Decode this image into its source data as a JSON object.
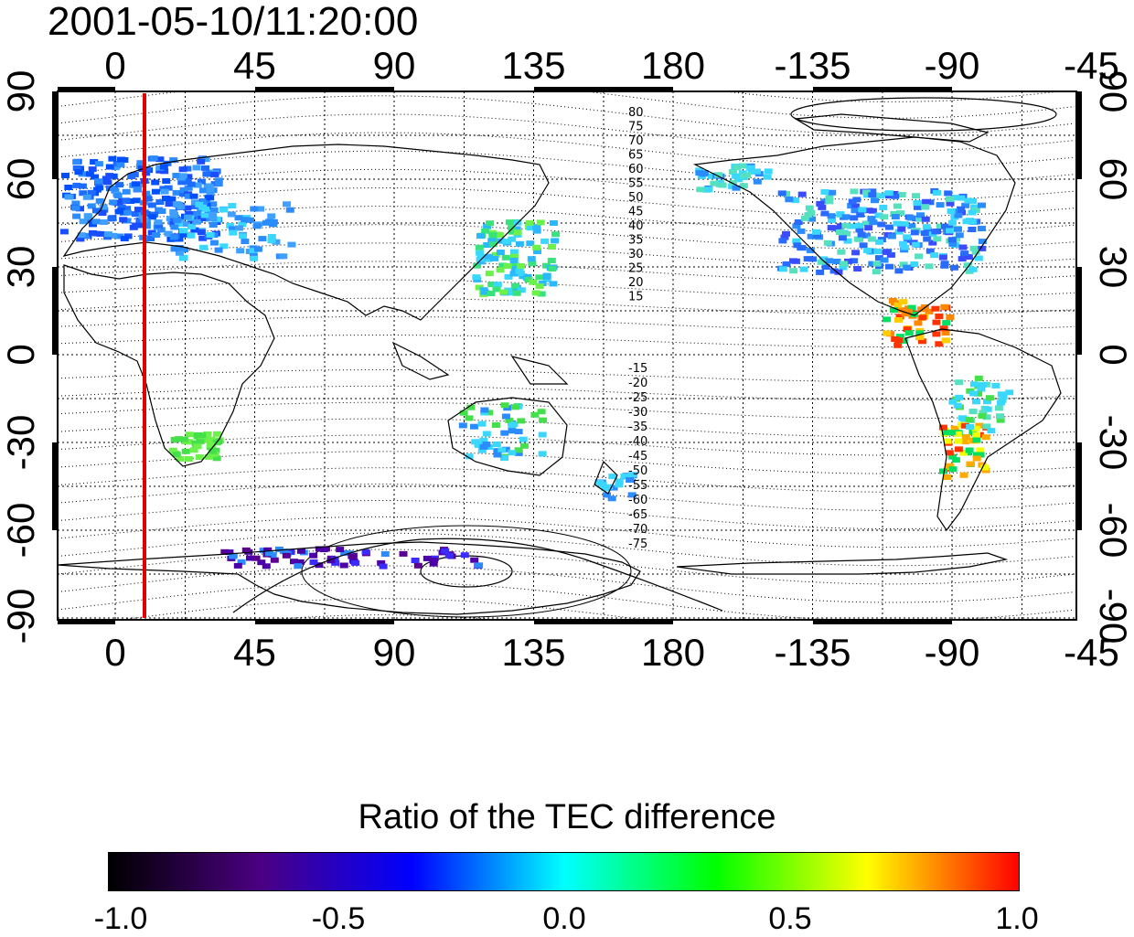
{
  "title": "2001-05-10/11:20:00",
  "map": {
    "lon_ticks": [
      "0",
      "45",
      "90",
      "135",
      "180",
      "-135",
      "-90",
      "-45"
    ],
    "lat_ticks_left": [
      "90",
      "60",
      "30",
      "0",
      "-30",
      "-60",
      "-90"
    ],
    "lat_ticks_right": [
      "90",
      "60",
      "30",
      "0",
      "-30",
      "-60",
      "-90"
    ],
    "contour_labels_north": [
      "80",
      "75",
      "70",
      "65",
      "60",
      "55",
      "50",
      "45",
      "40",
      "35",
      "30",
      "25",
      "20",
      "15"
    ],
    "contour_labels_south": [
      "-15",
      "-20",
      "-25",
      "-30",
      "-35",
      "-40",
      "-45",
      "-50",
      "-55",
      "-60",
      "-65",
      "-70",
      "-75"
    ],
    "marker_line_color": "#e00000"
  },
  "colorbar": {
    "title": "Ratio of the TEC difference",
    "ticks": [
      "-1.0",
      "-0.5",
      "0.0",
      "0.5",
      "1.0"
    ],
    "colors": [
      "#000000",
      "#4b0082",
      "#0000ff",
      "#00ffff",
      "#00ff00",
      "#ffff00",
      "#ff0000"
    ]
  }
}
